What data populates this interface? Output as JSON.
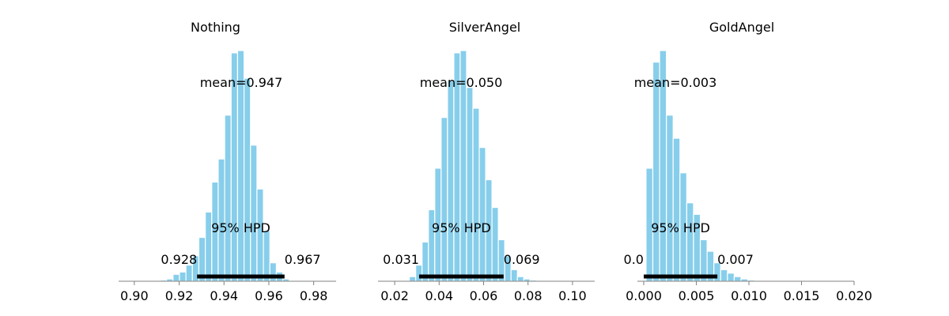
{
  "colors": {
    "bar": "#87ceeb",
    "bar_edge": "#ffffff",
    "hpd_line": "#000000",
    "axis": "#808080"
  },
  "chart_data": [
    {
      "type": "bar",
      "title": "Nothing",
      "mean_label": "mean=0.947",
      "hpd_label": "95% HPD",
      "hpd": [
        0.928,
        0.967
      ],
      "hpd_low_label": "0.928",
      "hpd_high_label": "0.967",
      "xlim": [
        0.893,
        0.99
      ],
      "xticks": [
        0.9,
        0.92,
        0.94,
        0.96,
        0.98
      ],
      "xtick_labels": [
        "0.90",
        "0.92",
        "0.94",
        "0.96",
        "0.98"
      ],
      "bin_start": 0.9115,
      "bin_width": 0.00288,
      "values": [
        0.005,
        0.01,
        0.03,
        0.04,
        0.07,
        0.11,
        0.19,
        0.3,
        0.43,
        0.53,
        0.72,
        0.99,
        1.0,
        0.88,
        0.59,
        0.4,
        0.22,
        0.08,
        0.04,
        0.01
      ]
    },
    {
      "type": "bar",
      "title": "SilverAngel",
      "mean_label": "mean=0.050",
      "hpd_label": "95% HPD",
      "hpd": [
        0.031,
        0.069
      ],
      "hpd_low_label": "0.031",
      "hpd_high_label": "0.069",
      "xlim": [
        0.0125,
        0.11
      ],
      "xticks": [
        0.02,
        0.04,
        0.06,
        0.08,
        0.1
      ],
      "xtick_labels": [
        "0.02",
        "0.04",
        "0.06",
        "0.08",
        "0.10"
      ],
      "bin_start": 0.0266,
      "bin_width": 0.00286,
      "values": [
        0.02,
        0.07,
        0.17,
        0.31,
        0.49,
        0.71,
        0.87,
        0.99,
        1.0,
        0.84,
        0.75,
        0.58,
        0.44,
        0.32,
        0.18,
        0.11,
        0.05,
        0.02,
        0.01,
        0.005
      ]
    },
    {
      "type": "bar",
      "title": "GoldAngel",
      "mean_label": "mean=0.003",
      "hpd_label": "95% HPD",
      "hpd": [
        0.0,
        0.007
      ],
      "hpd_low_label": "0.0",
      "hpd_high_label": "0.007",
      "xlim": [
        -0.0006,
        0.02
      ],
      "xticks": [
        0.0,
        0.005,
        0.01,
        0.015,
        0.02
      ],
      "xtick_labels": [
        "0.000",
        "0.005",
        "0.010",
        "0.015",
        "0.020"
      ],
      "bin_start": 0.00022,
      "bin_width": 0.000645,
      "values": [
        0.49,
        0.95,
        1.0,
        0.72,
        0.62,
        0.47,
        0.34,
        0.29,
        0.18,
        0.13,
        0.08,
        0.05,
        0.035,
        0.02,
        0.01,
        0.005,
        0.004,
        0.003,
        0.002,
        0.001
      ]
    }
  ]
}
